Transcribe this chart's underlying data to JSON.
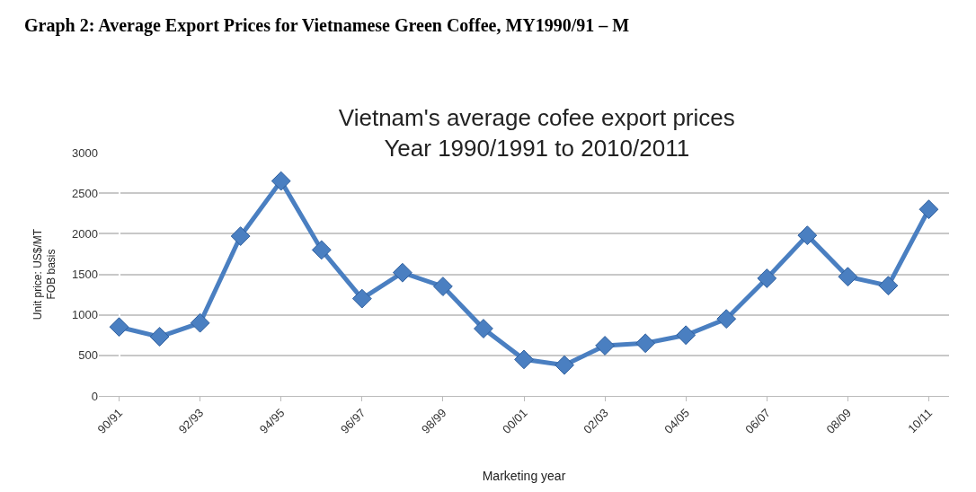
{
  "chart_data": {
    "type": "line",
    "title": "Vietnam's average cofee export prices\nYear 1990/1991 to 2010/2011",
    "xlabel": "Marketing year",
    "ylabel": "Unit price: US$/MT\nFOB basis",
    "annotations": [
      "Graph 2: Average Export Prices for Vietnamese Green Coffee, MY1990/91 – M"
    ],
    "categories": [
      "90/91",
      null,
      "92/93",
      null,
      "94/95",
      null,
      "96/97",
      null,
      "98/99",
      null,
      "00/01",
      null,
      "02/03",
      null,
      "04/05",
      null,
      "06/07",
      null,
      "08/09",
      null,
      "10/11"
    ],
    "series": [
      {
        "color": "#4a7fc1",
        "values": [
          850,
          730,
          900,
          1970,
          2650,
          1800,
          1200,
          1520,
          1350,
          830,
          450,
          380,
          620,
          650,
          750,
          950,
          1450,
          1980,
          1470,
          1360,
          2300
        ]
      }
    ],
    "ylim": [
      0,
      3000
    ],
    "yticks": [
      0,
      500,
      1000,
      1500,
      2000,
      2500,
      3000
    ],
    "grid": "y",
    "marker": "diamond",
    "line_style": "solid"
  }
}
